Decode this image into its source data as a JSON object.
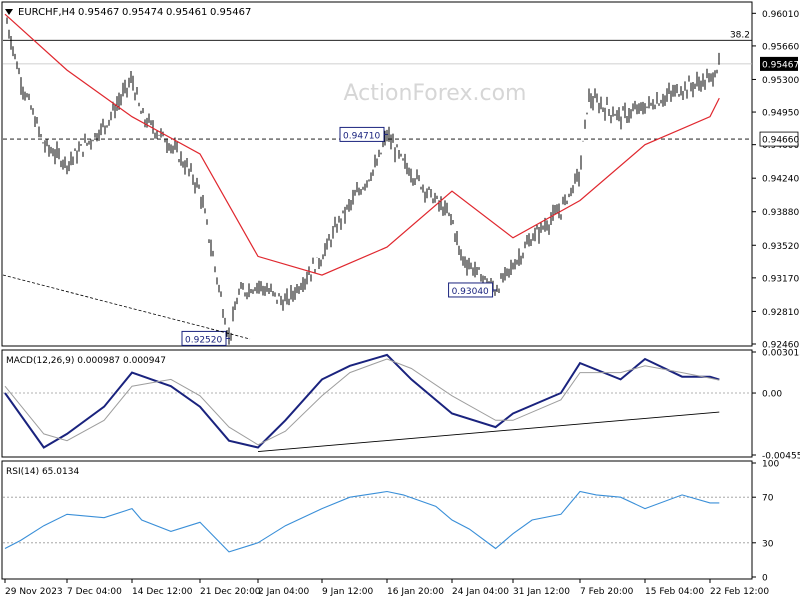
{
  "chart_data": [
    {
      "type": "bar",
      "panel": "price",
      "header": {
        "symbol": "EURCHF,H4",
        "values": [
          "0.95467",
          "0.95474",
          "0.95461",
          "0.95467"
        ]
      },
      "watermark": "ActionForex.com",
      "ylim": [
        0.9246,
        0.9611
      ],
      "y_ticks": [
        "0.96010",
        "0.95660",
        "0.95300",
        "0.94950",
        "0.94600",
        "0.94240",
        "0.93880",
        "0.93520",
        "0.93170",
        "0.92810",
        "0.92460"
      ],
      "x_ticks": [
        "29 Nov 2023",
        "7 Dec 04:00",
        "14 Dec 12:00",
        "21 Dec 20:00",
        "2 Jan 04:00",
        "9 Jan 12:00",
        "16 Jan 20:00",
        "24 Jan 04:00",
        "31 Jan 12:00",
        "7 Feb 20:00",
        "15 Feb 04:00",
        "22 Feb 12:00"
      ],
      "series": [
        {
          "x": [
            "29 Nov 2023",
            "1 Dec",
            "4 Dec",
            "7 Dec 04:00",
            "11 Dec",
            "14 Dec 12:00",
            "15 Dec",
            "18 Dec",
            "20 Dec",
            "21 Dec 20:00",
            "27 Dec",
            "29 Dec",
            "2 Jan 04:00",
            "5 Jan",
            "9 Jan 12:00",
            "11 Jan",
            "15 Jan",
            "16 Jan 20:00",
            "18 Jan",
            "22 Jan",
            "24 Jan 04:00",
            "25 Jan",
            "29 Jan",
            "31 Jan 12:00",
            "2 Feb",
            "5 Feb",
            "7 Feb 20:00",
            "8 Feb",
            "12 Feb",
            "15 Feb 04:00",
            "19 Feb",
            "22 Feb 12:00",
            "23 Feb"
          ],
          "values": [
            0.96,
            0.953,
            0.946,
            0.944,
            0.948,
            0.953,
            0.949,
            0.946,
            0.943,
            0.941,
            0.9252,
            0.93,
            0.931,
            0.929,
            0.934,
            0.938,
            0.944,
            0.9471,
            0.944,
            0.94,
            0.938,
            0.934,
            0.9304,
            0.933,
            0.936,
            0.939,
            0.943,
            0.951,
            0.949,
            0.95,
            0.952,
            0.953,
            0.95467
          ]
        },
        {
          "x": [
            "29 Nov 2023",
            "7 Dec 04:00",
            "14 Dec 12:00",
            "21 Dec 20:00",
            "2 Jan 04:00",
            "9 Jan 12:00",
            "16 Jan 20:00",
            "24 Jan 04:00",
            "31 Jan 12:00",
            "7 Feb 20:00",
            "15 Feb 04:00",
            "22 Feb 12:00",
            "23 Feb"
          ],
          "values": [
            0.96,
            0.954,
            0.949,
            0.945,
            0.934,
            0.932,
            0.935,
            0.941,
            0.936,
            0.94,
            0.946,
            0.949,
            0.951
          ],
          "color": "#e0282f"
        }
      ],
      "levels": [
        {
          "value": 0.9572,
          "label": "38.2",
          "style": "solid"
        },
        {
          "value": 0.95467,
          "label": "0.95467",
          "style": "current"
        },
        {
          "value": 0.9466,
          "label": "0.94660",
          "style": "dashed"
        }
      ],
      "annotations": [
        {
          "label": "0.94710",
          "x": "16 Jan 20:00",
          "y": 0.9471
        },
        {
          "label": "0.93040",
          "x": "29 Jan",
          "y": 0.9304
        },
        {
          "label": "0.92520",
          "x": "27 Dec",
          "y": 0.9252
        }
      ]
    },
    {
      "type": "line",
      "panel": "macd",
      "title": "MACD(12,26,9) 0.000987 0.000947",
      "ylim": [
        -0.00455,
        0.003013
      ],
      "y_ticks": [
        "0.003013",
        "0.00",
        "-0.00455"
      ],
      "series": [
        {
          "x": [
            "29 Nov 2023",
            "4 Dec",
            "7 Dec 04:00",
            "11 Dec",
            "14 Dec 12:00",
            "18 Dec",
            "21 Dec 20:00",
            "27 Dec",
            "2 Jan 04:00",
            "5 Jan",
            "9 Jan 12:00",
            "12 Jan",
            "16 Jan 20:00",
            "19 Jan",
            "24 Jan 04:00",
            "29 Jan",
            "31 Jan 12:00",
            "5 Feb",
            "7 Feb 20:00",
            "12 Feb",
            "15 Feb 04:00",
            "19 Feb",
            "22 Feb 12:00",
            "23 Feb"
          ],
          "values": [
            0.0,
            -0.004,
            -0.003,
            -0.001,
            0.0015,
            0.0005,
            -0.001,
            -0.0035,
            -0.004,
            -0.002,
            0.001,
            0.002,
            0.0028,
            0.001,
            -0.0015,
            -0.0025,
            -0.0015,
            0.0,
            0.0022,
            0.001,
            0.0025,
            0.0012,
            0.0012,
            0.000987
          ],
          "color": "#1a237e"
        },
        {
          "x": [
            "29 Nov 2023",
            "4 Dec",
            "7 Dec 04:00",
            "11 Dec",
            "14 Dec 12:00",
            "18 Dec",
            "21 Dec 20:00",
            "27 Dec",
            "2 Jan 04:00",
            "5 Jan",
            "9 Jan 12:00",
            "12 Jan",
            "16 Jan 20:00",
            "19 Jan",
            "24 Jan 04:00",
            "29 Jan",
            "31 Jan 12:00",
            "5 Feb",
            "7 Feb 20:00",
            "12 Feb",
            "15 Feb 04:00",
            "19 Feb",
            "22 Feb 12:00",
            "23 Feb"
          ],
          "values": [
            0.0005,
            -0.003,
            -0.0035,
            -0.002,
            0.0005,
            0.001,
            -0.0002,
            -0.0025,
            -0.0038,
            -0.0028,
            -0.0002,
            0.0015,
            0.0025,
            0.0018,
            -0.0002,
            -0.002,
            -0.002,
            -0.0005,
            0.0015,
            0.0015,
            0.002,
            0.0015,
            0.0011,
            0.000947
          ],
          "color": "#9e9e9e"
        }
      ],
      "trendline": {
        "from": {
          "x": "2 Jan 04:00",
          "y": -0.0043
        },
        "to": {
          "x": "23 Feb",
          "y": -0.0014
        }
      }
    },
    {
      "type": "line",
      "panel": "rsi",
      "title": "RSI(14) 65.0134",
      "ylim": [
        0,
        100
      ],
      "y_ticks": [
        "100",
        "70",
        "30",
        "0"
      ],
      "levels": [
        70,
        30
      ],
      "series": [
        {
          "x": [
            "29 Nov 2023",
            "1 Dec",
            "4 Dec",
            "7 Dec 04:00",
            "11 Dec",
            "14 Dec 12:00",
            "15 Dec",
            "18 Dec",
            "21 Dec 20:00",
            "27 Dec",
            "2 Jan 04:00",
            "5 Jan",
            "9 Jan 12:00",
            "12 Jan",
            "16 Jan 20:00",
            "18 Jan",
            "22 Jan",
            "24 Jan 04:00",
            "26 Jan",
            "29 Jan",
            "31 Jan 12:00",
            "2 Feb",
            "5 Feb",
            "7 Feb 20:00",
            "9 Feb",
            "12 Feb",
            "15 Feb 04:00",
            "19 Feb",
            "22 Feb 12:00",
            "23 Feb"
          ],
          "values": [
            25,
            32,
            45,
            55,
            52,
            60,
            50,
            40,
            48,
            22,
            30,
            45,
            60,
            70,
            75,
            72,
            62,
            50,
            42,
            25,
            38,
            50,
            55,
            75,
            72,
            70,
            60,
            72,
            65,
            65.0134
          ],
          "color": "#3a8fd8"
        }
      ]
    }
  ]
}
